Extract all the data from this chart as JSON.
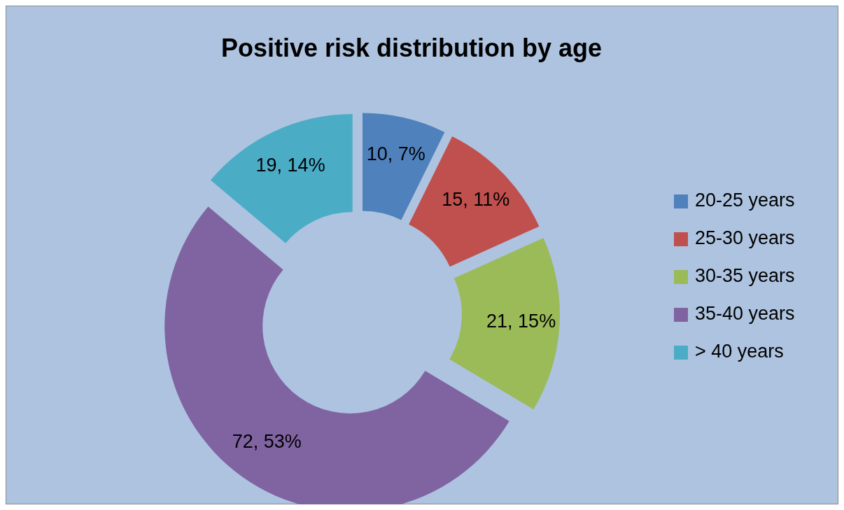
{
  "chart_data": {
    "type": "donut",
    "title": "Positive risk distribution by age",
    "categories": [
      "20-25 years",
      "25-30 years",
      "30-35 years",
      "35-40 years",
      "> 40 years"
    ],
    "values": [
      10,
      15,
      21,
      72,
      19
    ],
    "colors": [
      "#4f81bd",
      "#c0504d",
      "#9bbb59",
      "#8064a2",
      "#4bacc6"
    ],
    "value_labels": [
      "10, 7%",
      "15, 11%",
      "21, 15%",
      "72, 53%",
      "19, 14%"
    ],
    "legend": "right"
  }
}
